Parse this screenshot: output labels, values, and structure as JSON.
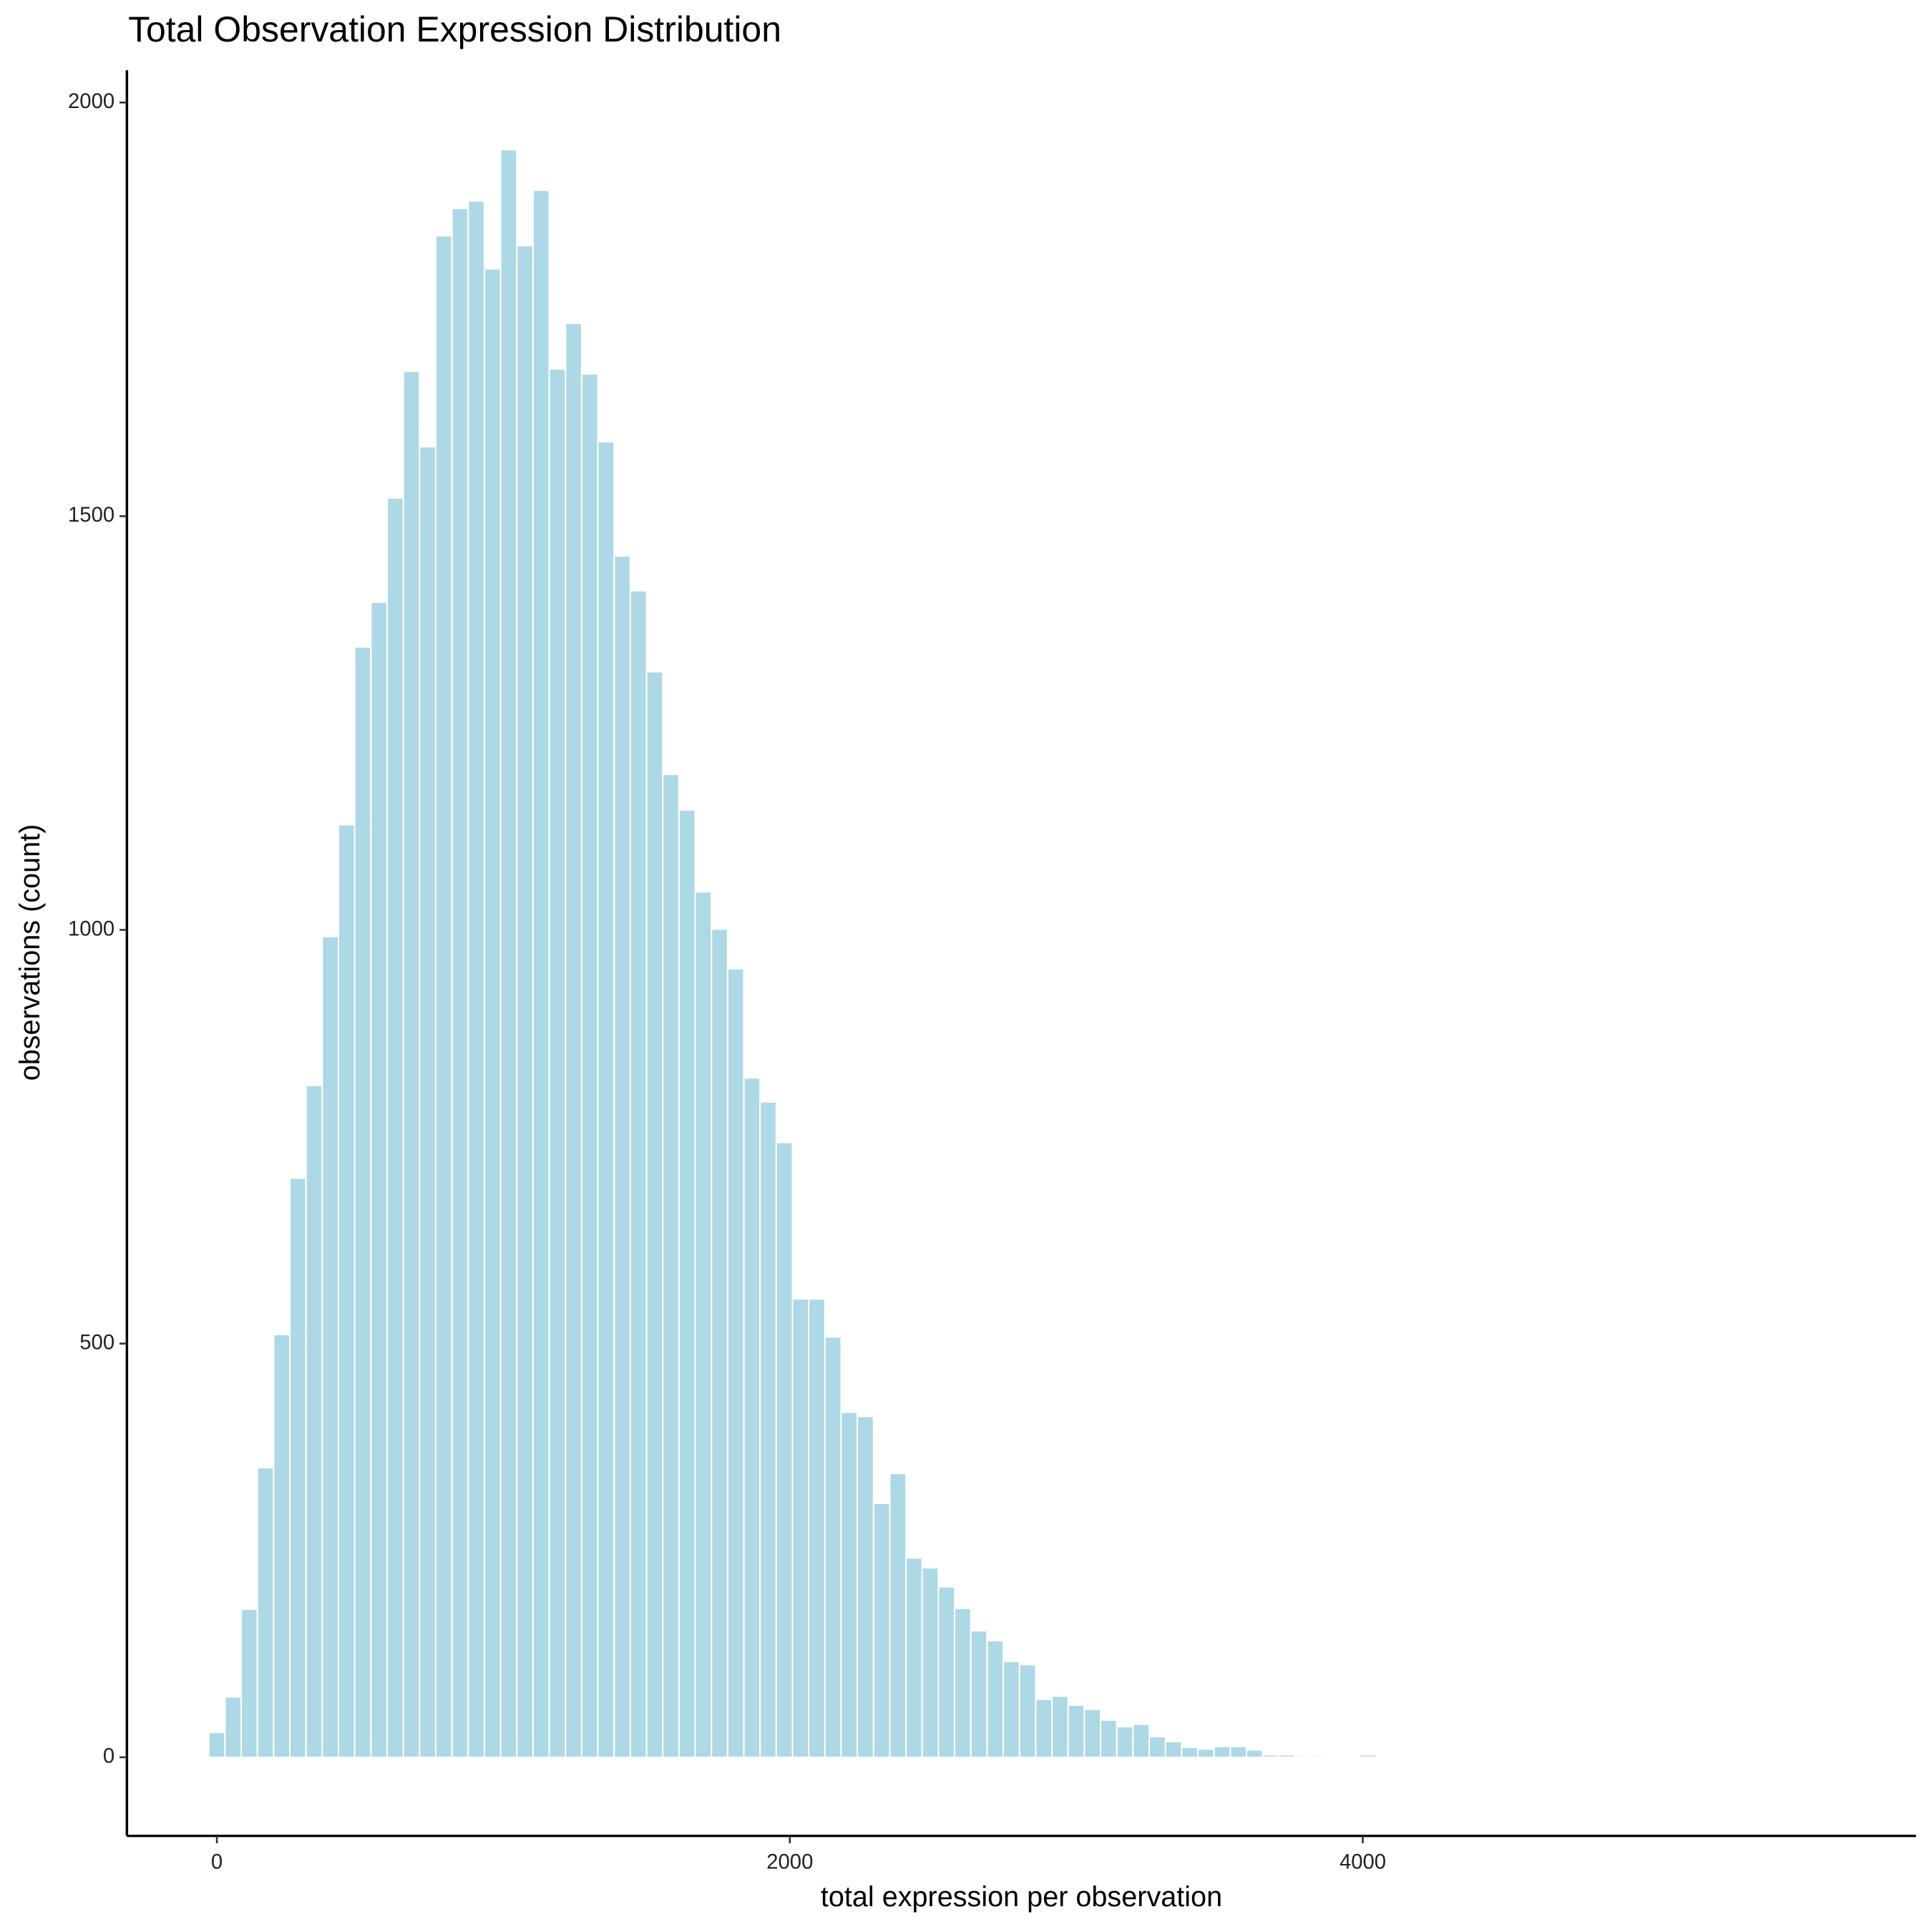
{
  "chart_data": {
    "type": "histogram",
    "title": "Total Observation Expression Distribution",
    "xlabel": "total expression per observation",
    "ylabel": "observations (count)",
    "color": "#add8e6",
    "bins": [
      -28.3,
      28.3,
      84.9,
      141.5,
      198.1,
      254.7,
      311.3,
      367.9,
      424.5,
      481.1,
      537.7,
      594.3,
      650.9,
      707.5,
      764.1,
      820.7,
      877.3,
      933.9,
      990.5,
      1047.1,
      1103.7,
      1160.3,
      1216.9,
      1273.5,
      1330.1,
      1386.7,
      1443.3,
      1499.9,
      1556.5,
      1613.1,
      1669.7,
      1726.3,
      1782.9,
      1839.5,
      1896.1,
      1952.7,
      2009.3,
      2065.9,
      2122.5,
      2179.1,
      2235.7,
      2292.3,
      2348.9,
      2405.5,
      2462.1,
      2518.7,
      2575.3,
      2631.9,
      2688.5,
      2745.1,
      2801.7,
      2858.3,
      2914.9,
      2971.5,
      3028.1,
      3084.7,
      3141.3,
      3197.9,
      3254.5,
      3311.1,
      3367.7,
      3424.3,
      3480.9,
      3537.5,
      3594.1,
      3650.7,
      3707.3,
      3763.9,
      3820.5,
      3877.1,
      3933.7,
      3990.3,
      4046.9
    ],
    "values": [
      30,
      73,
      179,
      350,
      511,
      700,
      812,
      992,
      1127,
      1342,
      1396,
      1522,
      1675,
      1584,
      1839,
      1872,
      1881,
      1799,
      1943,
      1827,
      1894,
      1678,
      1733,
      1672,
      1590,
      1452,
      1410,
      1312,
      1188,
      1145,
      1046,
      1001,
      953,
      821,
      792,
      743,
      554,
      554,
      508,
      417,
      412,
      307,
      343,
      241,
      229,
      206,
      180,
      153,
      141,
      116,
      112,
      70,
      74,
      63,
      58,
      45,
      37,
      40,
      25,
      19,
      12,
      10,
      13,
      13,
      9,
      3,
      3,
      2,
      2,
      1,
      0,
      3
    ],
    "xlim": [
      -314,
      5931
    ],
    "ylim": [
      -95,
      2039
    ],
    "xticks": [
      0,
      2000,
      4000
    ],
    "yticks": [
      0,
      500,
      1000,
      1500,
      2000
    ]
  }
}
